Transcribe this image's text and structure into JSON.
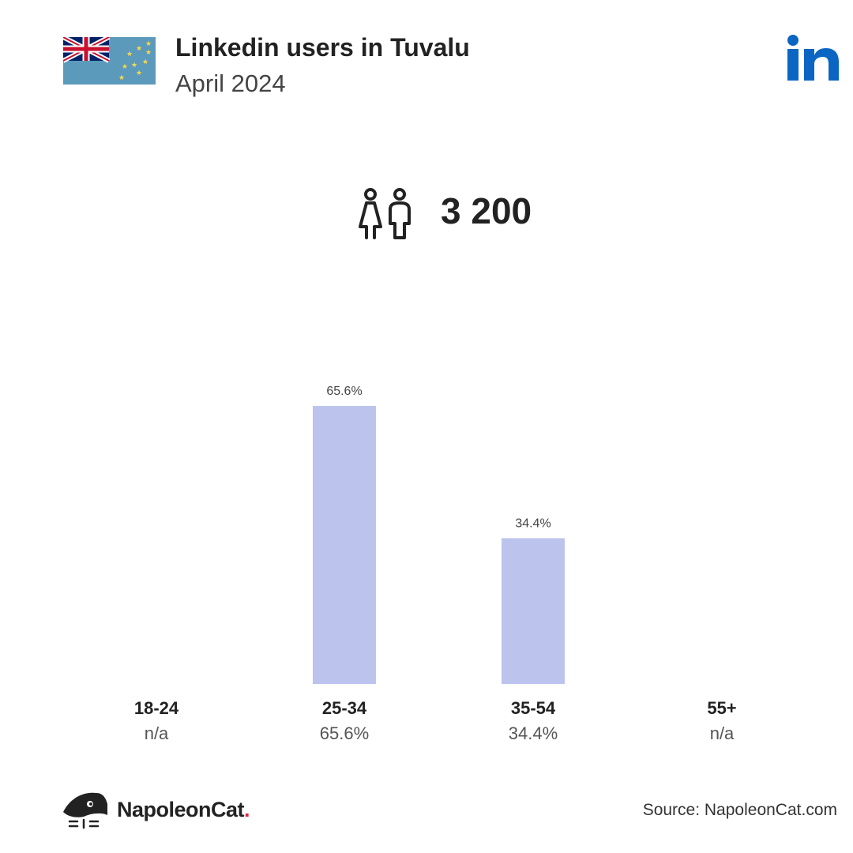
{
  "header": {
    "title": "Linkedin users in Tuvalu",
    "subtitle": "April 2024",
    "flag_icon": "tuvalu-flag-icon",
    "platform_icon": "linkedin-icon",
    "platform_color": "#0a66c2"
  },
  "summary": {
    "icon": "people-icon",
    "total": "3 200"
  },
  "chart_data": {
    "type": "bar",
    "categories": [
      "18-24",
      "25-34",
      "35-54",
      "55+"
    ],
    "values": [
      null,
      65.6,
      34.4,
      null
    ],
    "data_labels": [
      "n/a",
      "65.6%",
      "34.4%",
      "n/a"
    ],
    "bar_labels": [
      "",
      "65.6%",
      "34.4%",
      ""
    ],
    "bar_color": "#bcc4ee",
    "ylim": [
      0,
      65.6
    ],
    "title": "",
    "xlabel": "",
    "ylabel": ""
  },
  "footer": {
    "brand_name": "NapoleonCat",
    "brand_dot": ".",
    "brand_icon": "napoleoncat-logo-icon",
    "source": "Source: NapoleonCat.com"
  }
}
